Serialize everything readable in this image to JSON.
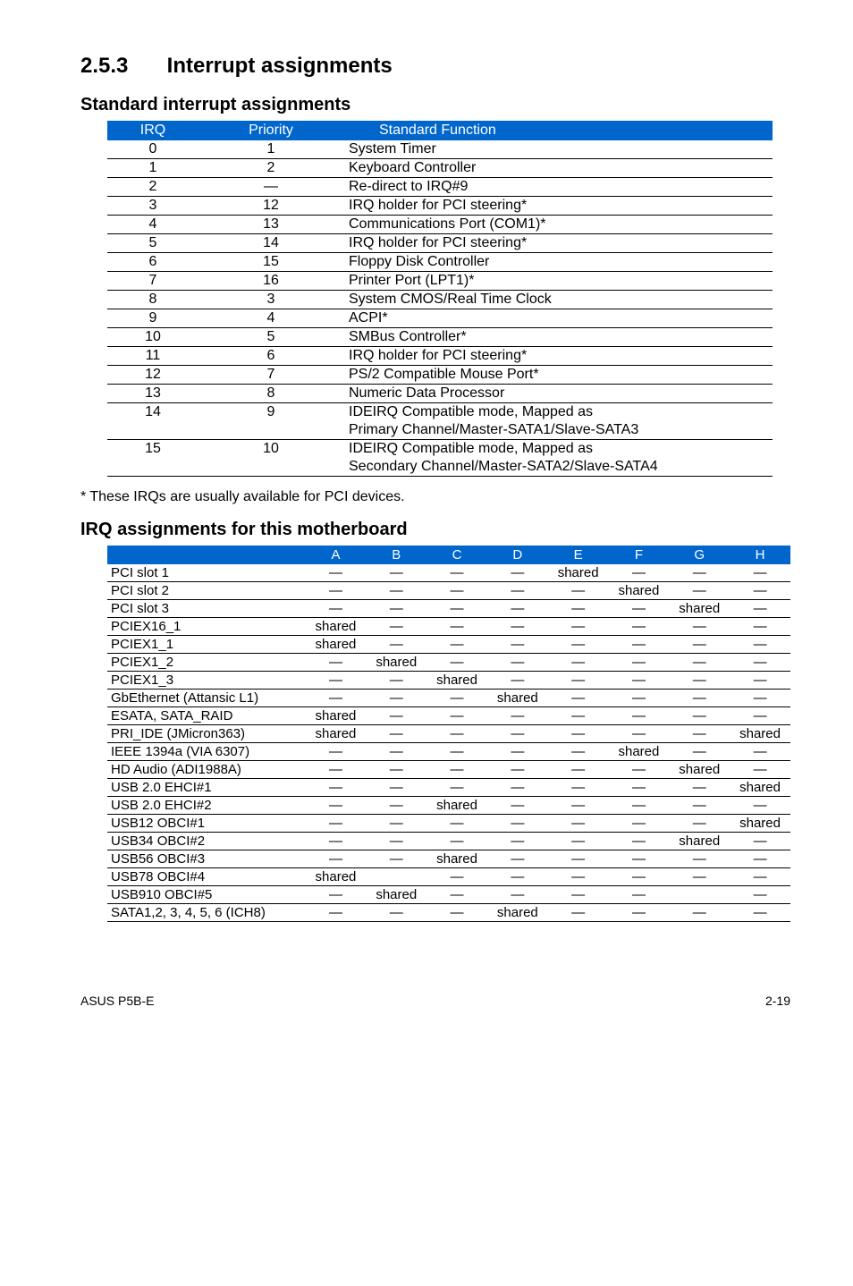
{
  "section": {
    "number": "2.5.3",
    "title": "Interrupt assignments"
  },
  "subtitle1": "Standard interrupt assignments",
  "std_table": {
    "headers": [
      "IRQ",
      "Priority",
      "Standard Function"
    ],
    "rows": [
      {
        "irq": "0",
        "pri": "1",
        "fn": "System Timer"
      },
      {
        "irq": "1",
        "pri": "2",
        "fn": "Keyboard Controller"
      },
      {
        "irq": "2",
        "pri": "—",
        "fn": "Re-direct to IRQ#9"
      },
      {
        "irq": "3",
        "pri": "12",
        "fn": "IRQ holder for PCI steering*"
      },
      {
        "irq": "4",
        "pri": "13",
        "fn": "Communications Port (COM1)*"
      },
      {
        "irq": "5",
        "pri": "14",
        "fn": "IRQ holder for PCI steering*"
      },
      {
        "irq": "6",
        "pri": "15",
        "fn": "Floppy Disk Controller"
      },
      {
        "irq": "7",
        "pri": "16",
        "fn": "Printer Port (LPT1)*"
      },
      {
        "irq": "8",
        "pri": "3",
        "fn": "System CMOS/Real Time Clock"
      },
      {
        "irq": "9",
        "pri": "4",
        "fn": "ACPI*"
      },
      {
        "irq": "10",
        "pri": "5",
        "fn": "SMBus Controller*"
      },
      {
        "irq": "11",
        "pri": "6",
        "fn": "IRQ holder for PCI steering*"
      },
      {
        "irq": "12",
        "pri": "7",
        "fn": "PS/2 Compatible Mouse Port*"
      },
      {
        "irq": "13",
        "pri": "8",
        "fn": "Numeric Data Processor"
      },
      {
        "irq": "14",
        "pri": "9",
        "fn": "IDEIRQ Compatible mode, Mapped as Primary Channel/Master-SATA1/Slave-SATA3",
        "two": [
          "IDEIRQ Compatible mode, Mapped as",
          "Primary Channel/Master-SATA1/Slave-SATA3"
        ]
      },
      {
        "irq": "15",
        "pri": "10",
        "fn": "IDEIRQ Compatible mode, Mapped as Secondary Channel/Master-SATA2/Slave-SATA4",
        "two": [
          "IDEIRQ Compatible mode, Mapped as",
          "Secondary Channel/Master-SATA2/Slave-SATA4"
        ]
      }
    ]
  },
  "note": "* These IRQs are usually available for PCI devices.",
  "subtitle2": "IRQ assignments for this motherboard",
  "assign_table": {
    "headers": [
      "",
      "A",
      "B",
      "C",
      "D",
      "E",
      "F",
      "G",
      "H"
    ],
    "rows": [
      {
        "label": "PCI slot 1",
        "cells": [
          "—",
          "—",
          "—",
          "—",
          "shared",
          "—",
          "—",
          "—"
        ]
      },
      {
        "label": "PCI slot 2",
        "cells": [
          "—",
          "—",
          "—",
          "—",
          "—",
          "shared",
          "—",
          "—"
        ]
      },
      {
        "label": "PCI slot 3",
        "cells": [
          "—",
          "—",
          "—",
          "—",
          "—",
          "—",
          "shared",
          "—"
        ]
      },
      {
        "label": "PCIEX16_1",
        "cells": [
          "shared",
          "—",
          "—",
          "—",
          "—",
          "—",
          "—",
          "—"
        ]
      },
      {
        "label": "PCIEX1_1",
        "cells": [
          "shared",
          "—",
          "—",
          "—",
          "—",
          "—",
          "—",
          "—"
        ]
      },
      {
        "label": "PCIEX1_2",
        "cells": [
          "—",
          "shared",
          "—",
          "—",
          "—",
          "—",
          "—",
          "—"
        ]
      },
      {
        "label": "PCIEX1_3",
        "cells": [
          "—",
          "—",
          "shared",
          "—",
          "—",
          "—",
          "—",
          "—"
        ]
      },
      {
        "label": "GbEthernet (Attansic L1)",
        "cells": [
          "—",
          "—",
          "—",
          "shared",
          "—",
          "—",
          "—",
          "—"
        ]
      },
      {
        "label": "ESATA, SATA_RAID",
        "cells": [
          "shared",
          "—",
          "—",
          "—",
          "—",
          "—",
          "—",
          "—"
        ]
      },
      {
        "label": "PRI_IDE (JMicron363)",
        "cells": [
          "shared",
          "—",
          "—",
          "—",
          "—",
          "—",
          "—",
          "shared"
        ]
      },
      {
        "label": "IEEE 1394a (VIA 6307)",
        "cells": [
          "—",
          "—",
          "—",
          "—",
          "—",
          "shared",
          "—",
          "—"
        ]
      },
      {
        "label": "HD Audio (ADI1988A)",
        "cells": [
          "—",
          "—",
          "—",
          "—",
          "—",
          "—",
          "shared",
          "—"
        ]
      },
      {
        "label": "USB 2.0 EHCI#1",
        "cells": [
          "—",
          "—",
          "—",
          "—",
          "—",
          "—",
          "—",
          "shared"
        ]
      },
      {
        "label": "USB 2.0 EHCI#2",
        "cells": [
          "—",
          "—",
          "shared",
          "—",
          "—",
          "—",
          "—",
          "—"
        ]
      },
      {
        "label": "USB12 OBCI#1",
        "cells": [
          "—",
          "—",
          "—",
          "—",
          "—",
          "—",
          "—",
          "shared"
        ]
      },
      {
        "label": "USB34 OBCI#2",
        "cells": [
          "—",
          "—",
          "—",
          "—",
          "—",
          "—",
          "shared",
          "—"
        ]
      },
      {
        "label": "USB56 OBCI#3",
        "cells": [
          "—",
          "—",
          "shared",
          "—",
          "—",
          "—",
          "—",
          "—"
        ]
      },
      {
        "label": "USB78 OBCI#4",
        "cells": [
          "shared",
          "",
          "—",
          "—",
          "—",
          "—",
          "—",
          "—"
        ]
      },
      {
        "label": "USB910 OBCI#5",
        "cells": [
          "—",
          "shared",
          "—",
          "—",
          "—",
          "—",
          "",
          "—"
        ]
      },
      {
        "label": "SATA1,2, 3, 4, 5, 6 (ICH8)",
        "cells": [
          "—",
          "—",
          "—",
          "shared",
          "—",
          "—",
          "—",
          "—"
        ]
      }
    ]
  },
  "footer": {
    "left": "ASUS P5B-E",
    "right": "2-19"
  }
}
